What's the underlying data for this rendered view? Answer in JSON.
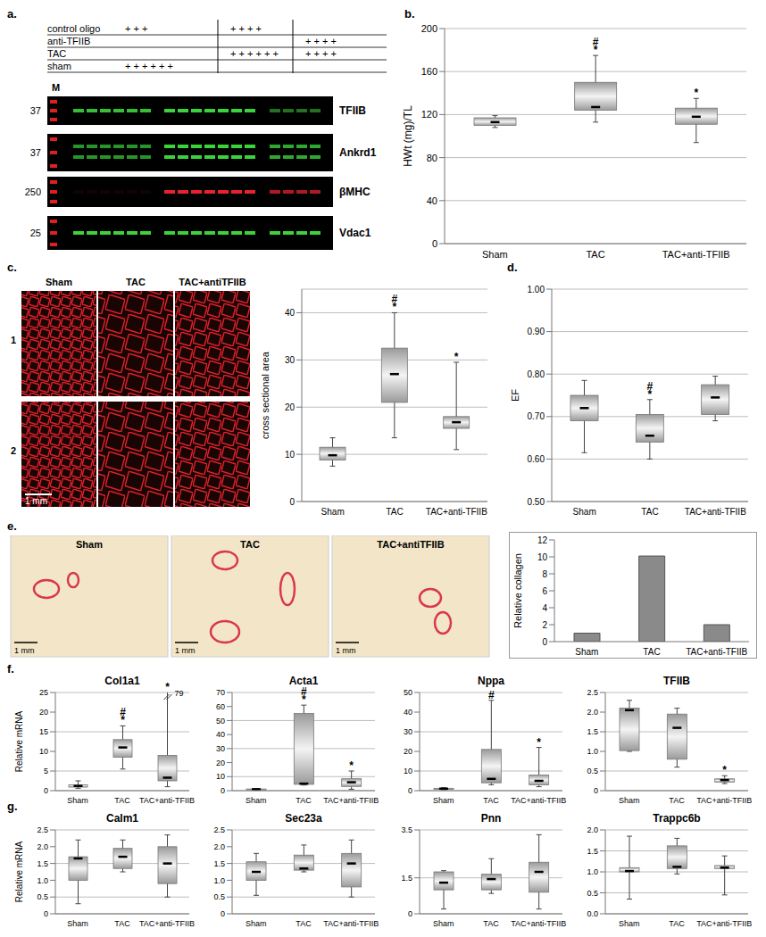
{
  "panel_letters": [
    "a.",
    "b.",
    "c.",
    "d.",
    "e.",
    "f.",
    "g."
  ],
  "blot": {
    "rows": [
      {
        "label": "control oligo",
        "marks": [
          "+ + +",
          "+ + + +",
          null
        ]
      },
      {
        "label": "anti-TFIIB",
        "marks": [
          null,
          null,
          "+ + + +"
        ]
      },
      {
        "label": "TAC",
        "marks": [
          null,
          "+ + + + + +",
          "+ + + +"
        ]
      },
      {
        "label": "sham",
        "marks": [
          "+ + + + + +",
          null,
          null
        ]
      }
    ],
    "marker_lane": "M",
    "bands": [
      {
        "label": "TFIIB",
        "mw": 37,
        "color": "#3ad43a"
      },
      {
        "label": "Ankrd1",
        "mw": 37,
        "color": "#3ad43a"
      },
      {
        "label": "βMHC",
        "mw": 250,
        "color": "#e8232b"
      },
      {
        "label": "Vdac1",
        "mw": 25,
        "color": "#3ad43a"
      }
    ]
  },
  "micrographs_c": {
    "columns": [
      "Sham",
      "TAC",
      "TAC+antiTFIIB"
    ],
    "rows": [
      "1",
      "2"
    ],
    "scale_bar": "1 mm"
  },
  "micrographs_e": {
    "columns": [
      "Sham",
      "TAC",
      "TAC+antiTFIIB"
    ],
    "scale_bar": "1 mm"
  },
  "chart_data": [
    {
      "type": "box",
      "ylabel": "HWt (mg)/TL",
      "categories": [
        "Sham",
        "TAC",
        "TAC+anti-TFIIB"
      ],
      "boxes": [
        {
          "min": 108,
          "q1": 110,
          "median": 113,
          "q3": 117,
          "max": 119
        },
        {
          "min": 113,
          "q1": 124,
          "median": 127,
          "q3": 150,
          "max": 175
        },
        {
          "min": 94,
          "q1": 111,
          "median": 118,
          "q3": 126,
          "max": 135
        }
      ],
      "annotations": [
        [],
        [
          "#",
          "*"
        ],
        [
          "*"
        ]
      ],
      "ylim": [
        0,
        200
      ],
      "yticks": [
        0,
        40,
        80,
        120,
        160,
        200
      ],
      "grid": true,
      "color": "#9a9a9a"
    },
    {
      "type": "box",
      "ylabel": "cross sectional area",
      "categories": [
        "Sham",
        "TAC",
        "TAC+anti-TFIIB"
      ],
      "boxes": [
        {
          "min": 7.5,
          "q1": 8.8,
          "median": 9.8,
          "q3": 11.5,
          "max": 13.5
        },
        {
          "min": 13.5,
          "q1": 21,
          "median": 27,
          "q3": 32.5,
          "max": 40
        },
        {
          "min": 11,
          "q1": 15.5,
          "median": 16.8,
          "q3": 18,
          "max": 29.5
        }
      ],
      "annotations": [
        [],
        [
          "#",
          "*"
        ],
        [
          "*"
        ]
      ],
      "ylim": [
        0,
        45
      ],
      "yticks": [
        0,
        10,
        20,
        30,
        40
      ],
      "grid": true,
      "color": "#9a9a9a"
    },
    {
      "type": "box",
      "ylabel": "EF",
      "categories": [
        "Sham",
        "TAC",
        "TAC+anti-TFIIB"
      ],
      "boxes": [
        {
          "min": 0.615,
          "q1": 0.69,
          "median": 0.72,
          "q3": 0.75,
          "max": 0.785
        },
        {
          "min": 0.6,
          "q1": 0.64,
          "median": 0.655,
          "q3": 0.705,
          "max": 0.74
        },
        {
          "min": 0.69,
          "q1": 0.705,
          "median": 0.745,
          "q3": 0.775,
          "max": 0.795
        }
      ],
      "annotations": [
        [],
        [
          "#",
          "*"
        ],
        []
      ],
      "ylim": [
        0.5,
        1
      ],
      "yticks": [
        {
          "value": 0.5,
          "label": "0.50"
        },
        {
          "value": 0.6,
          "label": "0.60"
        },
        {
          "value": 0.7,
          "label": "0.70"
        },
        {
          "value": 0.8,
          "label": "0.80"
        },
        {
          "value": 0.9,
          "label": "0.90"
        },
        {
          "value": 1,
          "label": "1.00"
        }
      ],
      "grid": true,
      "color": "#9a9a9a"
    },
    {
      "type": "bar",
      "ylabel": "Relative collagen",
      "categories": [
        "Sham",
        "TAC",
        "TAC+anti-TFIIB"
      ],
      "values": [
        1,
        10.1,
        2
      ],
      "ylim": [
        0,
        12
      ],
      "yticks": [
        0,
        2,
        4,
        6,
        8,
        10,
        12
      ],
      "grid": false,
      "color": "#8a8a8a"
    },
    {
      "type": "box",
      "title": "Col1a1",
      "ylabel": "Relative mRNA",
      "categories": [
        "Sham",
        "TAC",
        "TAC+anti-TFIIB"
      ],
      "boxes": [
        {
          "min": 0.6,
          "q1": 0.9,
          "median": 1.2,
          "q3": 1.5,
          "max": 2.5
        },
        {
          "min": 5.5,
          "q1": 8.5,
          "median": 11,
          "q3": 13,
          "max": 16.5
        },
        {
          "min": 1,
          "q1": 2.5,
          "median": 3.3,
          "q3": 9,
          "max": 79
        }
      ],
      "annotations": [
        [],
        [
          "#",
          "*"
        ],
        [
          "*"
        ]
      ],
      "ylim": [
        0,
        25
      ],
      "yticks": [
        0,
        5,
        10,
        15,
        20,
        25
      ],
      "grid": true,
      "color": "#9a9a9a"
    },
    {
      "type": "box",
      "title": "Acta1",
      "categories": [
        "Sham",
        "TAC",
        "TAC+anti-TFIIB"
      ],
      "boxes": [
        {
          "min": 0.5,
          "q1": 0.8,
          "median": 1,
          "q3": 1.2,
          "max": 1.5
        },
        {
          "min": 4,
          "q1": 4.5,
          "median": 5,
          "q3": 55,
          "max": 61
        },
        {
          "min": 1,
          "q1": 3,
          "median": 6,
          "q3": 8.5,
          "max": 14
        }
      ],
      "annotations": [
        [],
        [
          "#",
          "*"
        ],
        [
          "*"
        ]
      ],
      "ylim": [
        0,
        70
      ],
      "yticks": [
        0,
        10,
        20,
        30,
        40,
        50,
        60,
        70
      ],
      "grid": true,
      "color": "#9a9a9a"
    },
    {
      "type": "box",
      "title": "Nppa",
      "categories": [
        "Sham",
        "TAC",
        "TAC+anti-TFIIB"
      ],
      "boxes": [
        {
          "min": 0.5,
          "q1": 0.8,
          "median": 1,
          "q3": 1.2,
          "max": 1.5
        },
        {
          "min": 3,
          "q1": 4,
          "median": 6,
          "q3": 21,
          "max": 46
        },
        {
          "min": 2,
          "q1": 3,
          "median": 5,
          "q3": 8,
          "max": 22
        }
      ],
      "annotations": [
        [],
        [
          "#"
        ],
        [
          "*"
        ]
      ],
      "ylim": [
        0,
        50
      ],
      "yticks": [
        0,
        10,
        20,
        30,
        40,
        50
      ],
      "grid": true,
      "color": "#9a9a9a"
    },
    {
      "type": "box",
      "title": "TFIIB",
      "categories": [
        "Sham",
        "TAC",
        "TAC+anti-TFIIB"
      ],
      "boxes": [
        {
          "min": 1,
          "q1": 1.02,
          "median": 2.05,
          "q3": 2.1,
          "max": 2.3
        },
        {
          "min": 0.6,
          "q1": 0.8,
          "median": 1.6,
          "q3": 1.95,
          "max": 2.1
        },
        {
          "min": 0.18,
          "q1": 0.22,
          "median": 0.27,
          "q3": 0.3,
          "max": 0.38
        }
      ],
      "annotations": [
        [],
        [],
        [
          "*"
        ]
      ],
      "ylim": [
        0,
        2.5
      ],
      "yticks": [
        0,
        0.5,
        {
          "value": 1,
          "label": "1.0"
        },
        1.5,
        {
          "value": 2,
          "label": "2.0"
        },
        2.5
      ],
      "grid": true,
      "color": "#9a9a9a"
    },
    {
      "type": "box",
      "title": "Calm1",
      "ylabel": "Relative mRNA",
      "categories": [
        "Sham",
        "TAC",
        "TAC+anti-TFIIB"
      ],
      "boxes": [
        {
          "min": 0.3,
          "q1": 1,
          "median": 1.65,
          "q3": 1.7,
          "max": 2.2
        },
        {
          "min": 1.25,
          "q1": 1.35,
          "median": 1.7,
          "q3": 1.95,
          "max": 2.2
        },
        {
          "min": 0.5,
          "q1": 0.9,
          "median": 1.5,
          "q3": 2,
          "max": 2.35
        }
      ],
      "annotations": [
        [],
        [],
        []
      ],
      "ylim": [
        0,
        2.5
      ],
      "yticks": [
        0,
        0.5,
        {
          "value": 1,
          "label": "1.0"
        },
        1.5,
        {
          "value": 2,
          "label": "2.0"
        },
        2.5
      ],
      "grid": true,
      "color": "#9a9a9a"
    },
    {
      "type": "box",
      "title": "Sec23a",
      "categories": [
        "Sham",
        "TAC",
        "TAC+anti-TFIIB"
      ],
      "boxes": [
        {
          "min": 0.55,
          "q1": 1,
          "median": 1.25,
          "q3": 1.55,
          "max": 1.8
        },
        {
          "min": 1.25,
          "q1": 1.3,
          "median": 1.35,
          "q3": 1.75,
          "max": 2.05
        },
        {
          "min": 0.5,
          "q1": 0.8,
          "median": 1.5,
          "q3": 1.8,
          "max": 2.2
        }
      ],
      "annotations": [
        [],
        [],
        []
      ],
      "ylim": [
        0,
        2.5
      ],
      "yticks": [
        0,
        0.5,
        {
          "value": 1,
          "label": "1.0"
        },
        1.5,
        {
          "value": 2,
          "label": "2.0"
        },
        2.5
      ],
      "grid": true,
      "color": "#9a9a9a"
    },
    {
      "type": "box",
      "title": "Pnn",
      "categories": [
        "Sham",
        "TAC",
        "TAC+anti-TFIIB"
      ],
      "boxes": [
        {
          "min": 0.2,
          "q1": 1,
          "median": 1.3,
          "q3": 1.75,
          "max": 1.8
        },
        {
          "min": 0.85,
          "q1": 1,
          "median": 1.45,
          "q3": 1.65,
          "max": 2.3
        },
        {
          "min": 0.2,
          "q1": 0.9,
          "median": 1.75,
          "q3": 2.15,
          "max": 3.3
        }
      ],
      "annotations": [
        [],
        [],
        []
      ],
      "ylim": [
        0,
        3.5
      ],
      "yticks": [
        0,
        1.5,
        3.5
      ],
      "grid": true,
      "color": "#9a9a9a"
    },
    {
      "type": "box",
      "title": "Trappc6b",
      "categories": [
        "Sham",
        "TAC",
        "TAC+anti-TFIIB"
      ],
      "boxes": [
        {
          "min": 0.35,
          "q1": 1,
          "median": 1.02,
          "q3": 1.1,
          "max": 1.85
        },
        {
          "min": 0.95,
          "q1": 1.08,
          "median": 1.12,
          "q3": 1.62,
          "max": 1.8
        },
        {
          "min": 0.45,
          "q1": 1.08,
          "median": 1.1,
          "q3": 1.15,
          "max": 1.38
        }
      ],
      "annotations": [
        [],
        [],
        []
      ],
      "ylim": [
        0,
        2
      ],
      "yticks": [
        {
          "value": 0,
          "label": "0.0"
        },
        0.5,
        {
          "value": 1,
          "label": "1.0"
        },
        1.5,
        {
          "value": 2,
          "label": "2.0"
        }
      ],
      "grid": true,
      "color": "#9a9a9a"
    }
  ]
}
